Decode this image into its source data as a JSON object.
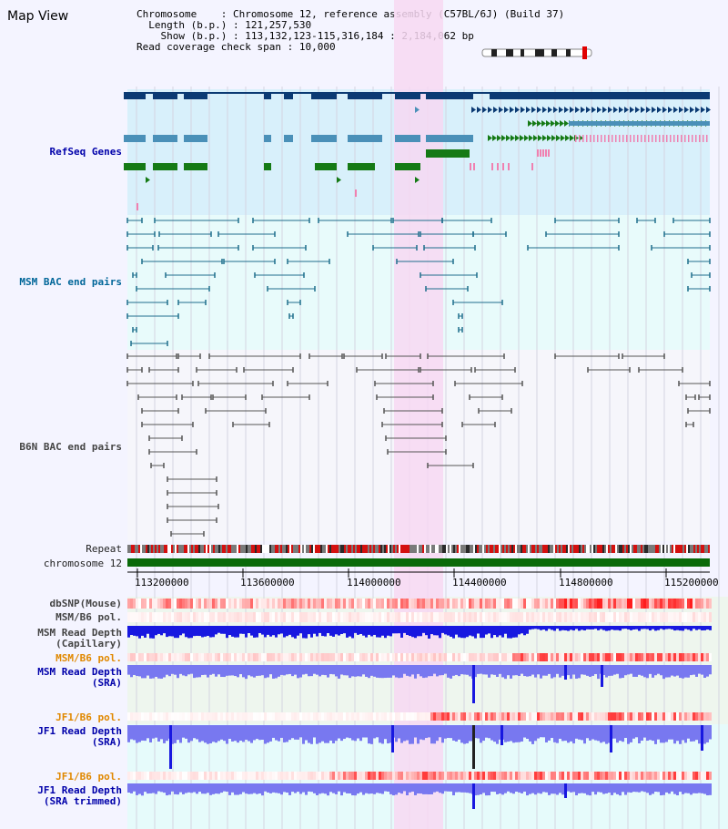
{
  "page": {
    "title": "Map View"
  },
  "info": {
    "chromosome_key": "Chromosome",
    "chromosome_val": "Chromosome 12, reference assembly (C57BL/6J) (Build 37)",
    "length_key": "Length (b.p.)",
    "length_val": "121,257,530",
    "show_key": "Show (b.p.)",
    "show_val": "113,132,123-115,316,184 : 2,184,062 bp",
    "span_key": "Read coverage check span",
    "span_val": "10,000"
  },
  "tracks": {
    "refseq": "RefSeq Genes",
    "msm_bac": "MSM BAC end pairs",
    "b6n_bac": "B6N BAC end pairs",
    "repeat": "Repeat",
    "chromosome": "chromosome 12",
    "dbsnp": "dbSNP(Mouse)",
    "msm_b6_pol_1": "MSM/B6 pol.",
    "msm_read_depth_cap_1": "MSM Read Depth",
    "msm_read_depth_cap_2": "(Capillary)",
    "msm_b6_pol_2": "MSM/B6 pol.",
    "msm_read_depth_sra_1": "MSM Read Depth",
    "msm_read_depth_sra_2": "(SRA)",
    "jf1_b6_pol_1": "JF1/B6 pol.",
    "jf1_read_depth_sra_1": "JF1 Read Depth",
    "jf1_read_depth_sra_2": "(SRA)",
    "jf1_b6_pol_2": "JF1/B6 pol.",
    "jf1_read_depth_trim_1": "JF1 Read Depth",
    "jf1_read_depth_trim_2": "(SRA trimmed)"
  },
  "axis": {
    "ticks": [
      "113200000",
      "113600000",
      "114000000",
      "114400000",
      "114800000",
      "115200000"
    ]
  },
  "colors": {
    "refseq_bg": "#d8f0fb",
    "msm_bg": "#e8fbfb",
    "b6n_bg": "#f6f6fb",
    "highlight": "#f7d8f2",
    "gene_dark": "#0b3a73",
    "gene_mid": "#4a90b8",
    "gene_green": "#157a15",
    "gene_pink": "#f080b0",
    "chromosome_bar": "#0a6a0a",
    "depth_blue": "#1818e0",
    "depth_light": "#7878f0",
    "snp_red": "#f03030"
  }
}
